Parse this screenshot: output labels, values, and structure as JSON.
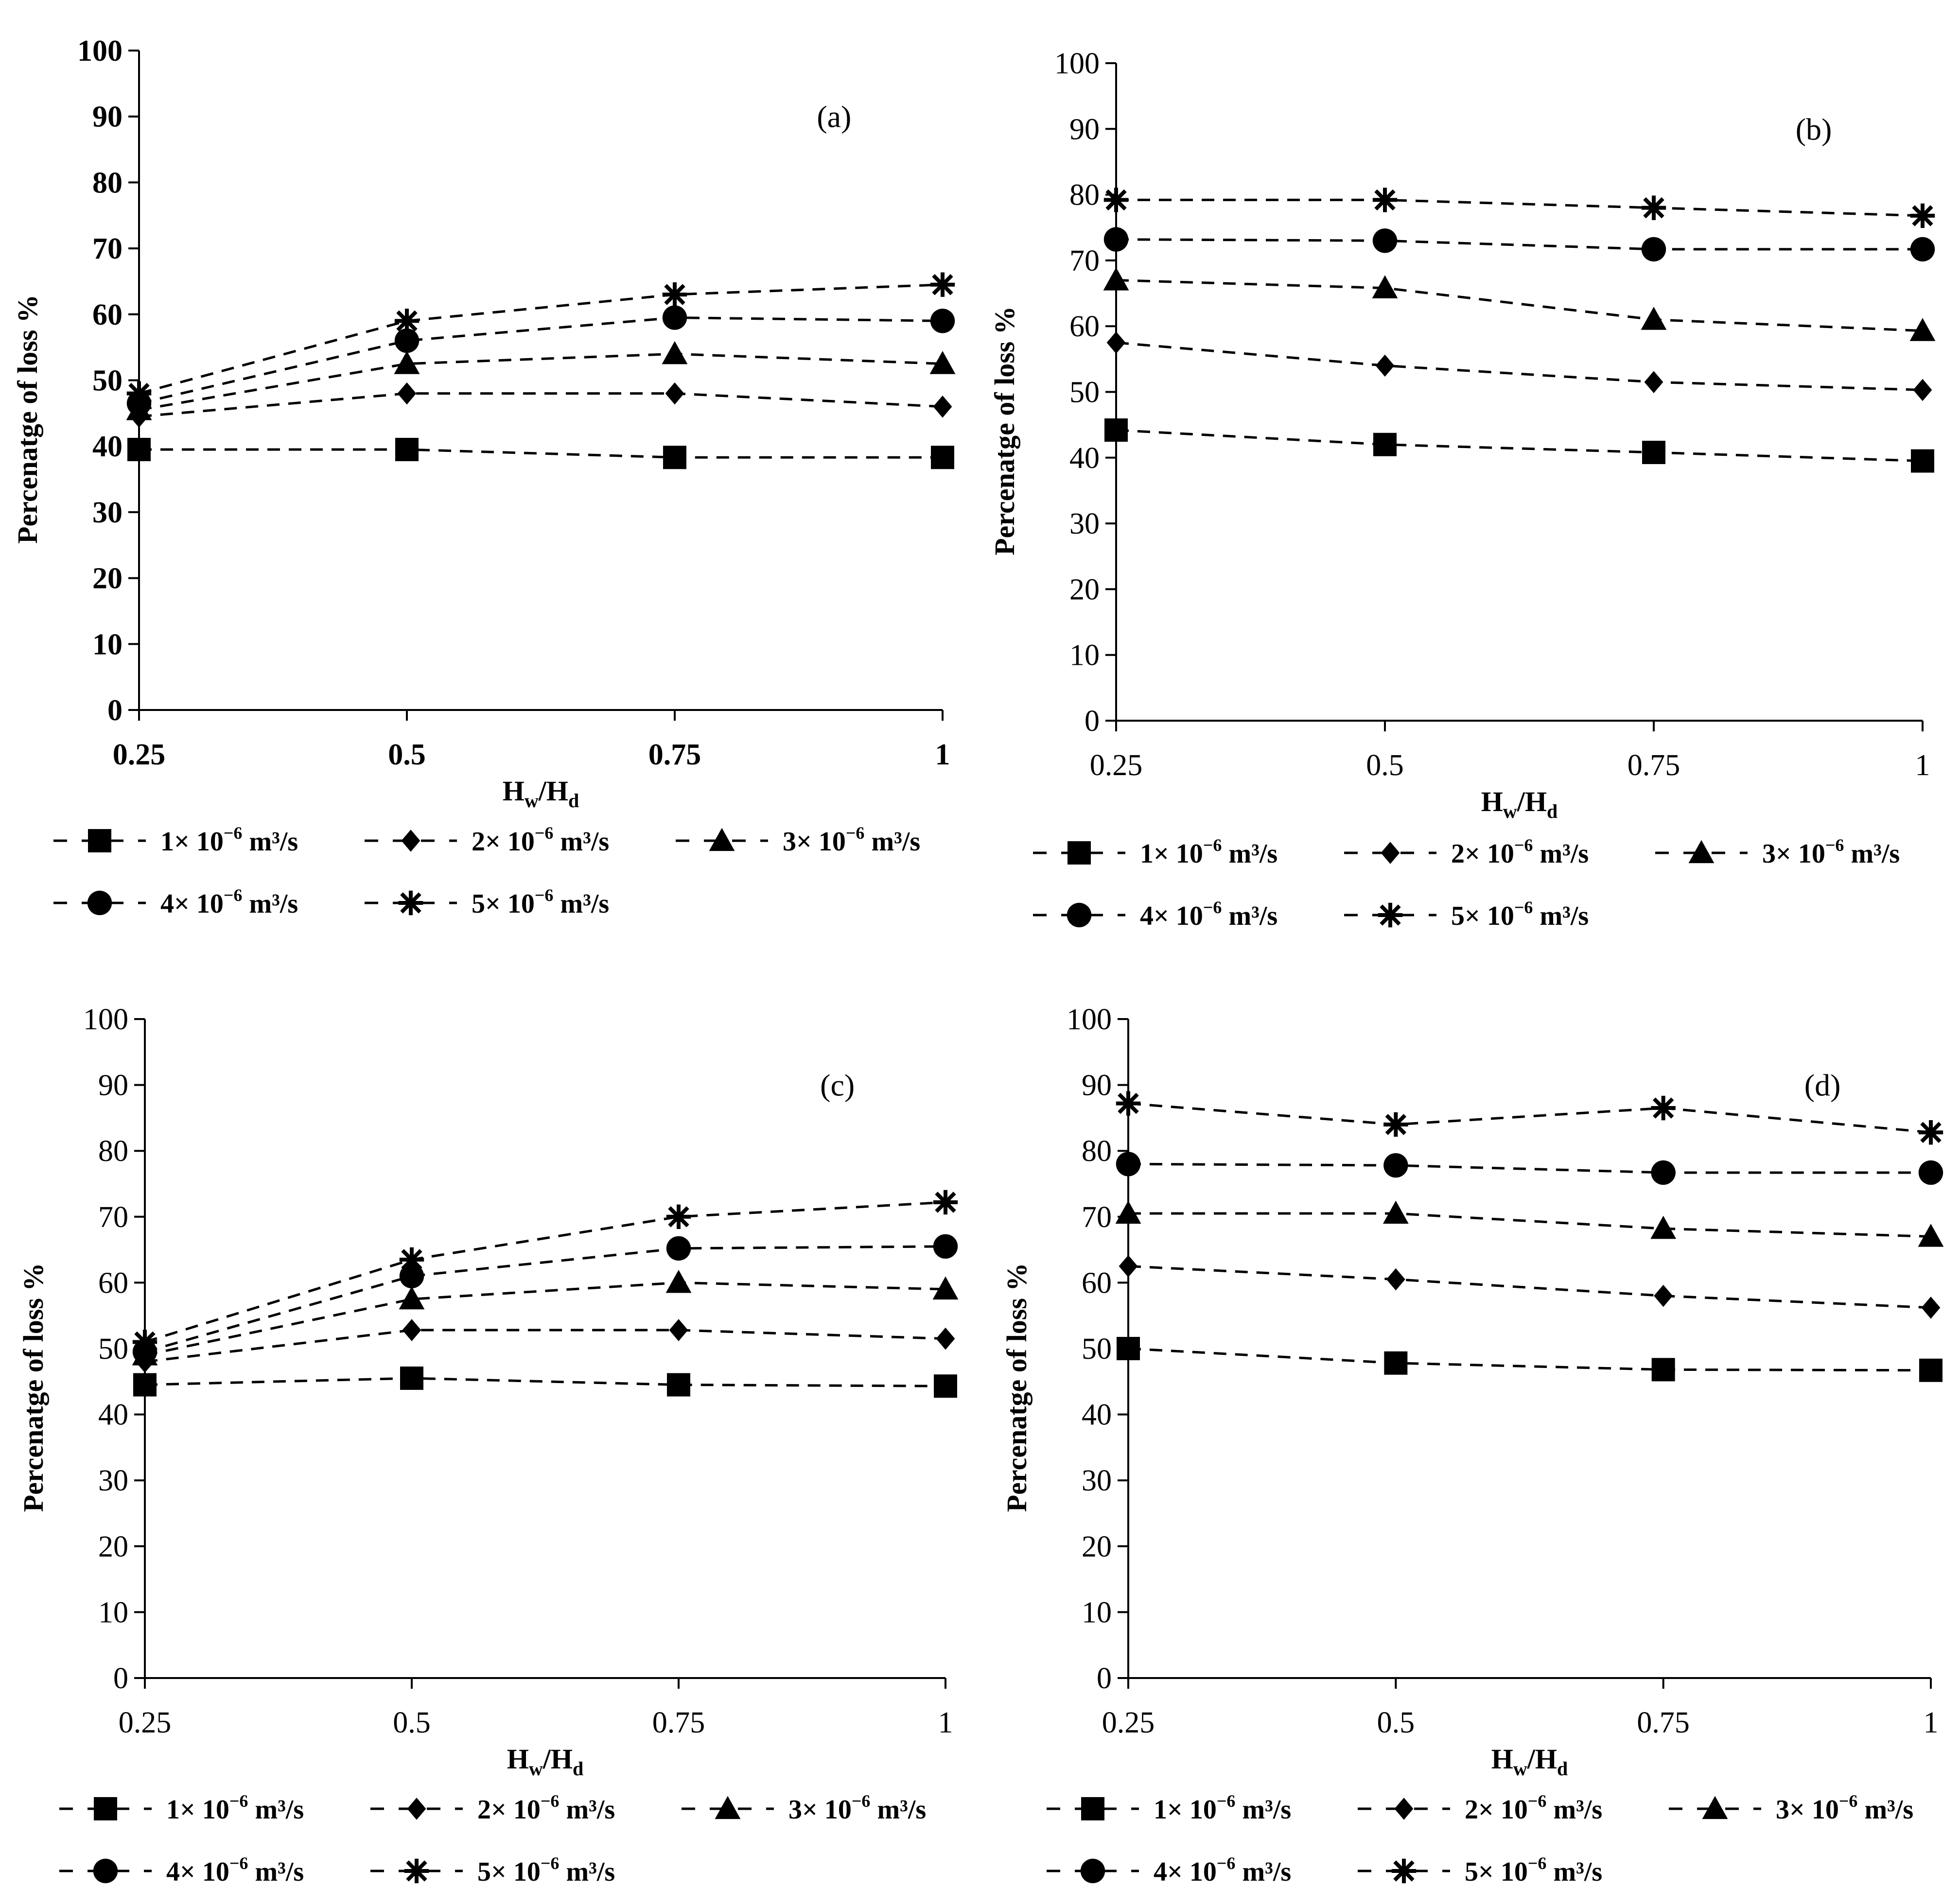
{
  "figure": {
    "legend": [
      {
        "coef": "1",
        "label_main": "1× 10",
        "label_exp": "−6",
        "label_unit": " m³/s",
        "marker": "square"
      },
      {
        "coef": "2",
        "label_main": "2× 10",
        "label_exp": "−6",
        "label_unit": " m³/s",
        "marker": "diamond"
      },
      {
        "coef": "3",
        "label_main": "3× 10",
        "label_exp": "−6",
        "label_unit": " m³/s",
        "marker": "triangle"
      },
      {
        "coef": "4",
        "label_main": "4× 10",
        "label_exp": "−6",
        "label_unit": " m³/s",
        "marker": "circle"
      },
      {
        "coef": "5",
        "label_main": "5× 10",
        "label_exp": "−6",
        "label_unit": " m³/s",
        "marker": "asterisk"
      }
    ],
    "xlabel_main_1": "H",
    "xlabel_sub_1": "w",
    "xlabel_slash": "/H",
    "xlabel_sub_2": "d",
    "ylabel": "Percenatge of loss %",
    "line_color": "#000000"
  },
  "chart_data": [
    {
      "id": "a",
      "panel_label": "(a)",
      "type": "line",
      "bold_ticks": true,
      "x": [
        0.25,
        0.5,
        0.75,
        1
      ],
      "x_tick_labels": [
        "0.25",
        "0.5",
        "0.75",
        "1"
      ],
      "ylim": [
        0,
        100
      ],
      "y_ticks": [
        0,
        10,
        20,
        30,
        40,
        50,
        60,
        70,
        80,
        90,
        100
      ],
      "series": [
        {
          "name": "1× 10⁻⁶ m³/s",
          "values": [
            39.5,
            39.5,
            38.3,
            38.3
          ]
        },
        {
          "name": "2× 10⁻⁶ m³/s",
          "values": [
            44.5,
            48,
            48,
            46
          ]
        },
        {
          "name": "3× 10⁻⁶ m³/s",
          "values": [
            45.5,
            52.5,
            54,
            52.5
          ]
        },
        {
          "name": "4× 10⁻⁶ m³/s",
          "values": [
            46.5,
            56,
            59.5,
            59
          ]
        },
        {
          "name": "5× 10⁻⁶ m³/s",
          "values": [
            48,
            59,
            63,
            64.5
          ]
        }
      ]
    },
    {
      "id": "b",
      "panel_label": "(b)",
      "type": "line",
      "bold_ticks": false,
      "x": [
        0.25,
        0.5,
        0.75,
        1
      ],
      "x_tick_labels": [
        "0.25",
        "0.5",
        "0.75",
        "1"
      ],
      "ylim": [
        0,
        100
      ],
      "y_ticks": [
        0,
        10,
        20,
        30,
        40,
        50,
        60,
        70,
        80,
        90,
        100
      ],
      "series": [
        {
          "name": "1× 10⁻⁶ m³/s",
          "values": [
            44.2,
            42,
            40.8,
            39.5
          ]
        },
        {
          "name": "2× 10⁻⁶ m³/s",
          "values": [
            57.5,
            54,
            51.5,
            50.3
          ]
        },
        {
          "name": "3× 10⁻⁶ m³/s",
          "values": [
            67,
            65.8,
            61,
            59.3
          ]
        },
        {
          "name": "4× 10⁻⁶ m³/s",
          "values": [
            73.2,
            73,
            71.7,
            71.7
          ]
        },
        {
          "name": "5× 10⁻⁶ m³/s",
          "values": [
            79.2,
            79.2,
            78,
            76.8
          ]
        }
      ]
    },
    {
      "id": "c",
      "panel_label": "(c)",
      "type": "line",
      "bold_ticks": false,
      "x": [
        0.25,
        0.5,
        0.75,
        1
      ],
      "x_tick_labels": [
        "0.25",
        "0.5",
        "0.75",
        "1"
      ],
      "ylim": [
        0,
        100
      ],
      "y_ticks": [
        0,
        10,
        20,
        30,
        40,
        50,
        60,
        70,
        80,
        90,
        100
      ],
      "series": [
        {
          "name": "1× 10⁻⁶ m³/s",
          "values": [
            44.5,
            45.5,
            44.5,
            44.3
          ]
        },
        {
          "name": "2× 10⁻⁶ m³/s",
          "values": [
            48,
            52.8,
            52.8,
            51.5
          ]
        },
        {
          "name": "3× 10⁻⁶ m³/s",
          "values": [
            49,
            57.5,
            60,
            59
          ]
        },
        {
          "name": "4× 10⁻⁶ m³/s",
          "values": [
            49.5,
            61,
            65.2,
            65.5
          ]
        },
        {
          "name": "5× 10⁻⁶ m³/s",
          "values": [
            51,
            63.5,
            70,
            72.2
          ]
        }
      ]
    },
    {
      "id": "d",
      "panel_label": "(d)",
      "type": "line",
      "bold_ticks": false,
      "x": [
        0.25,
        0.5,
        0.75,
        1
      ],
      "x_tick_labels": [
        "0.25",
        "0.5",
        "0.75",
        "1"
      ],
      "ylim": [
        0,
        100
      ],
      "y_ticks": [
        0,
        10,
        20,
        30,
        40,
        50,
        60,
        70,
        80,
        90,
        100
      ],
      "series": [
        {
          "name": "1× 10⁻⁶ m³/s",
          "values": [
            50,
            47.8,
            46.8,
            46.7
          ]
        },
        {
          "name": "2× 10⁻⁶ m³/s",
          "values": [
            62.5,
            60.5,
            58,
            56.2
          ]
        },
        {
          "name": "3× 10⁻⁶ m³/s",
          "values": [
            70.5,
            70.5,
            68.2,
            67
          ]
        },
        {
          "name": "4× 10⁻⁶ m³/s",
          "values": [
            78,
            77.8,
            76.7,
            76.7
          ]
        },
        {
          "name": "5× 10⁻⁶ m³/s",
          "values": [
            87.2,
            84,
            86.5,
            82.8
          ]
        }
      ]
    }
  ]
}
